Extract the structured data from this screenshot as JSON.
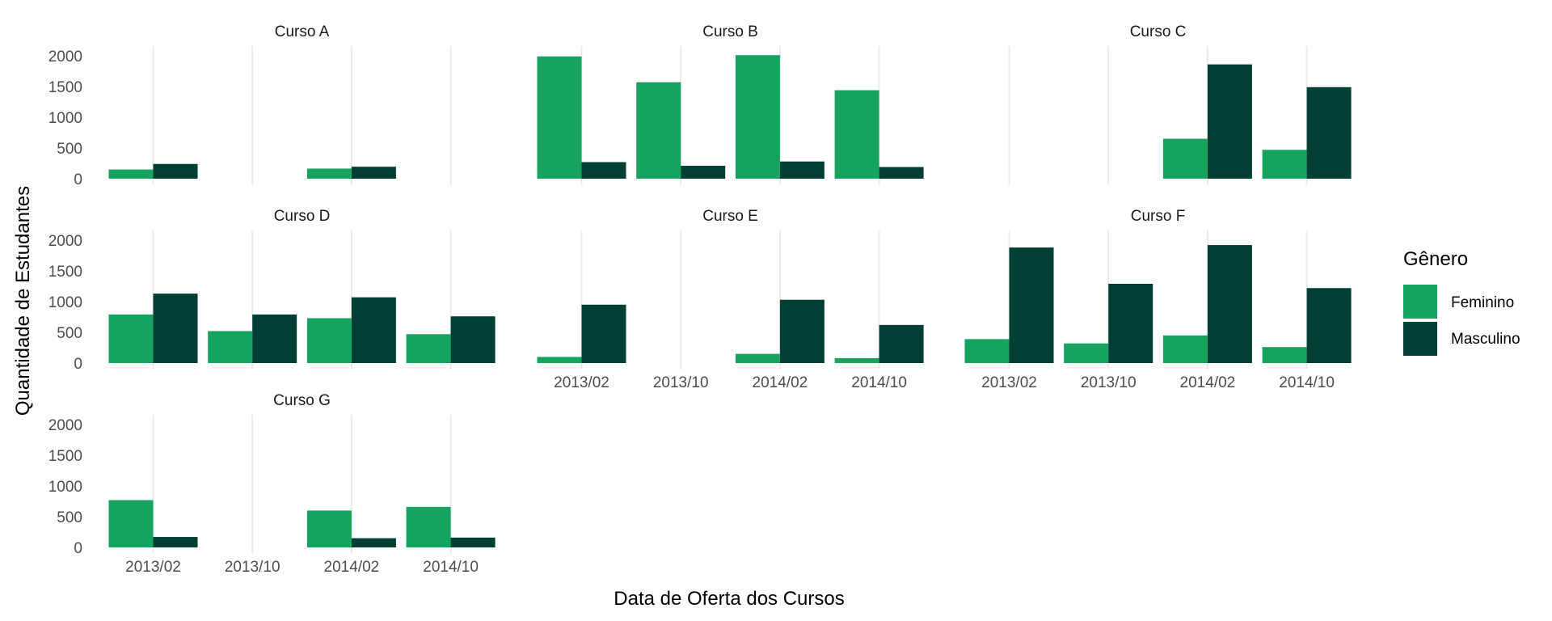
{
  "chart_data": {
    "type": "bar",
    "layout": "facet_wrap",
    "xlabel": "Data de Oferta dos Cursos",
    "ylabel": "Quantidade de Estudantes",
    "categories": [
      "2013/02",
      "2013/10",
      "2014/02",
      "2014/10"
    ],
    "ylim": [
      0,
      2000
    ],
    "yticks": [
      0,
      500,
      1000,
      1500,
      2000
    ],
    "legend": {
      "title": "Gênero",
      "position": "right",
      "entries": [
        {
          "label": "Feminino",
          "color": "#16a35f"
        },
        {
          "label": "Masculino",
          "color": "#013f35"
        }
      ]
    },
    "grid": "vertical major only",
    "panels": [
      {
        "title": "Curso A",
        "feminino": [
          150,
          null,
          165,
          null
        ],
        "masculino": [
          240,
          null,
          195,
          null
        ]
      },
      {
        "title": "Curso B",
        "feminino": [
          1990,
          1570,
          2010,
          1440
        ],
        "masculino": [
          270,
          210,
          280,
          190
        ]
      },
      {
        "title": "Curso C",
        "feminino": [
          null,
          null,
          650,
          470
        ],
        "masculino": [
          null,
          null,
          1860,
          1490
        ]
      },
      {
        "title": "Curso D",
        "feminino": [
          790,
          520,
          730,
          470
        ],
        "masculino": [
          1130,
          790,
          1070,
          760
        ]
      },
      {
        "title": "Curso E",
        "feminino": [
          100,
          null,
          150,
          80
        ],
        "masculino": [
          950,
          null,
          1030,
          620
        ]
      },
      {
        "title": "Curso F",
        "feminino": [
          390,
          320,
          450,
          260
        ],
        "masculino": [
          1880,
          1290,
          1920,
          1220
        ]
      },
      {
        "title": "Curso G",
        "feminino": [
          770,
          null,
          600,
          660
        ],
        "masculino": [
          170,
          null,
          150,
          160
        ]
      }
    ]
  }
}
